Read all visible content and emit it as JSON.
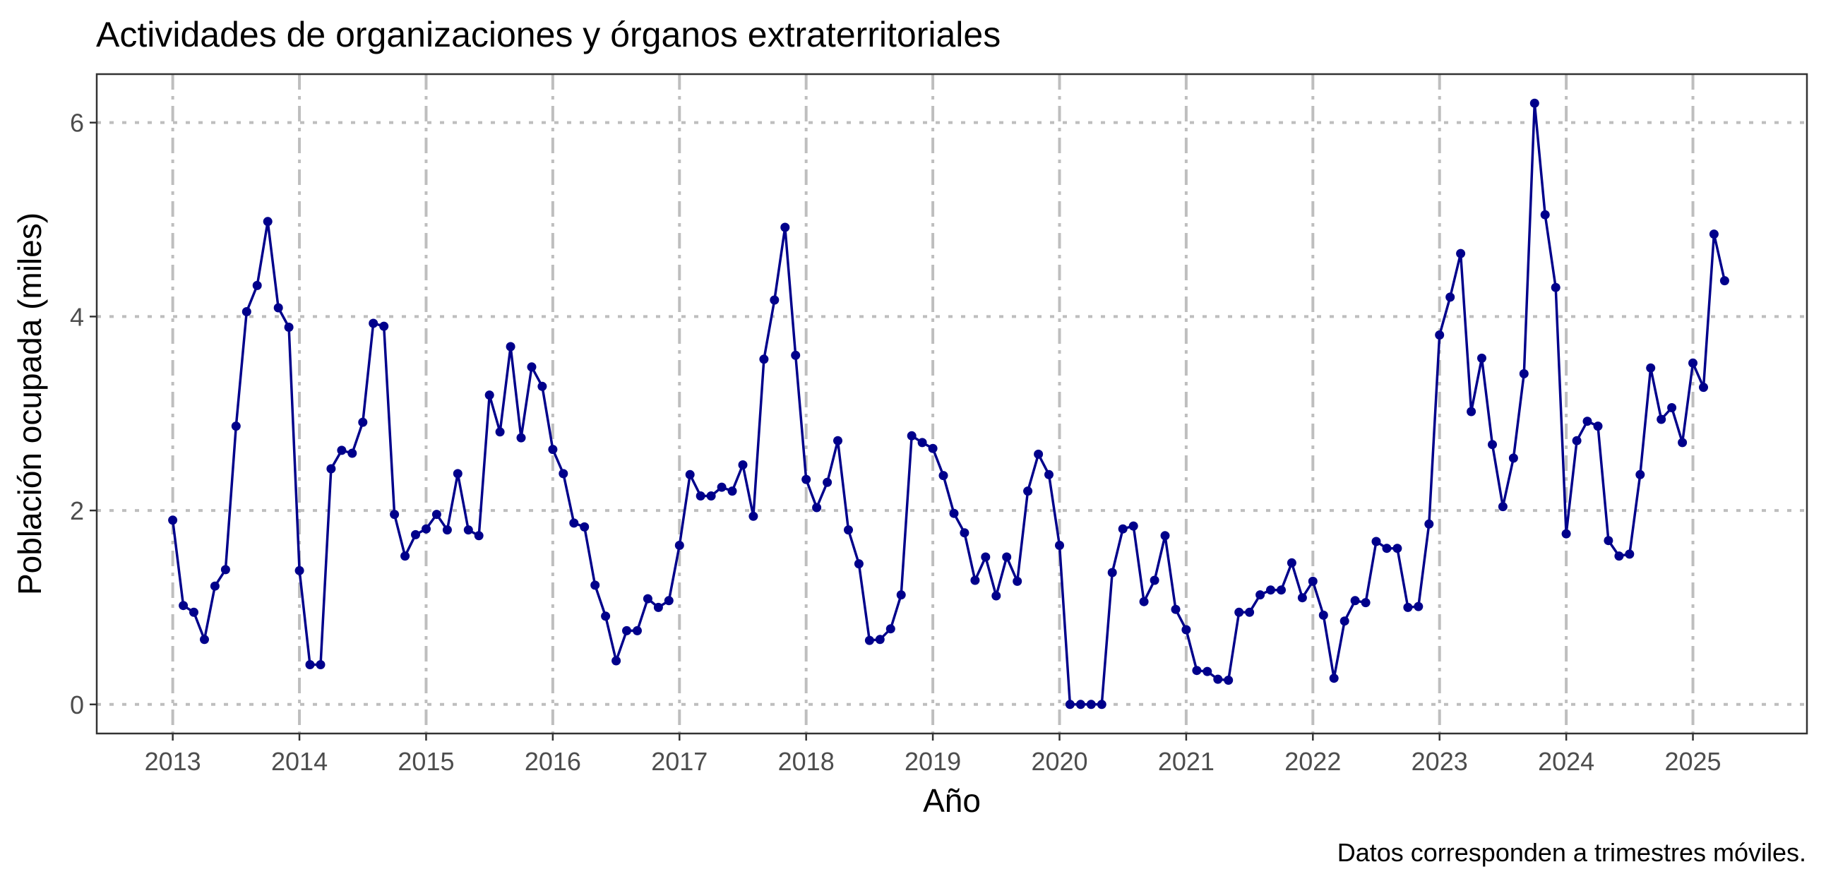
{
  "chart_data": {
    "type": "line",
    "title": "Actividades de organizaciones y órganos extraterritoriales",
    "xlabel": "Año",
    "ylabel": "Población ocupada (miles)",
    "caption": "Datos corresponden a trimestres móviles.",
    "xlim": [
      2012.4,
      2025.9
    ],
    "ylim": [
      -0.3,
      6.5
    ],
    "x_ticks": [
      2013,
      2014,
      2015,
      2016,
      2017,
      2018,
      2019,
      2020,
      2021,
      2022,
      2023,
      2024,
      2025
    ],
    "x_tick_labels": [
      "2013",
      "2014",
      "2015",
      "2016",
      "2017",
      "2018",
      "2019",
      "2020",
      "2021",
      "2022",
      "2023",
      "2024",
      "2025"
    ],
    "y_ticks": [
      0,
      2,
      4,
      6
    ],
    "y_tick_labels": [
      "0",
      "2",
      "4",
      "6"
    ],
    "grid": true,
    "line_color": "#00008B",
    "point_color": "#00008B",
    "series": [
      {
        "x_start": "2013-01",
        "frequency": "monthly",
        "values": [
          1.9,
          1.02,
          0.95,
          0.67,
          1.22,
          1.39,
          2.87,
          4.05,
          4.32,
          4.98,
          4.09,
          3.89,
          1.38,
          0.41,
          0.41,
          2.43,
          2.62,
          2.59,
          2.91,
          3.93,
          3.9,
          1.96,
          1.53,
          1.75,
          1.81,
          1.96,
          1.8,
          2.38,
          1.8,
          1.74,
          3.19,
          2.81,
          3.69,
          2.75,
          3.48,
          3.28,
          2.63,
          2.38,
          1.87,
          1.83,
          1.23,
          0.91,
          0.45,
          0.76,
          0.76,
          1.09,
          1.0,
          1.07,
          1.64,
          2.37,
          2.15,
          2.15,
          2.24,
          2.2,
          2.47,
          1.94,
          3.56,
          4.17,
          4.92,
          3.6,
          2.32,
          2.03,
          2.29,
          2.72,
          1.8,
          1.45,
          0.66,
          0.67,
          0.78,
          1.13,
          2.77,
          2.7,
          2.64,
          2.36,
          1.97,
          1.77,
          1.28,
          1.52,
          1.12,
          1.52,
          1.27,
          2.2,
          2.58,
          2.37,
          1.64,
          0.0,
          0.0,
          0.0,
          0.0,
          1.36,
          1.81,
          1.84,
          1.06,
          1.28,
          1.74,
          0.98,
          0.77,
          0.35,
          0.34,
          0.26,
          0.25,
          0.95,
          0.95,
          1.13,
          1.18,
          1.18,
          1.46,
          1.1,
          1.27,
          0.92,
          0.27,
          0.86,
          1.07,
          1.05,
          1.68,
          1.61,
          1.61,
          1.0,
          1.01,
          1.86,
          3.81,
          4.2,
          4.65,
          3.02,
          3.57,
          2.68,
          2.04,
          2.54,
          3.41,
          6.2,
          5.05,
          4.3,
          1.76,
          2.72,
          2.92,
          2.87,
          1.69,
          1.53,
          1.55,
          2.37,
          3.47,
          2.94,
          3.06,
          2.7,
          3.52,
          3.27,
          4.85,
          4.37
        ]
      }
    ]
  }
}
